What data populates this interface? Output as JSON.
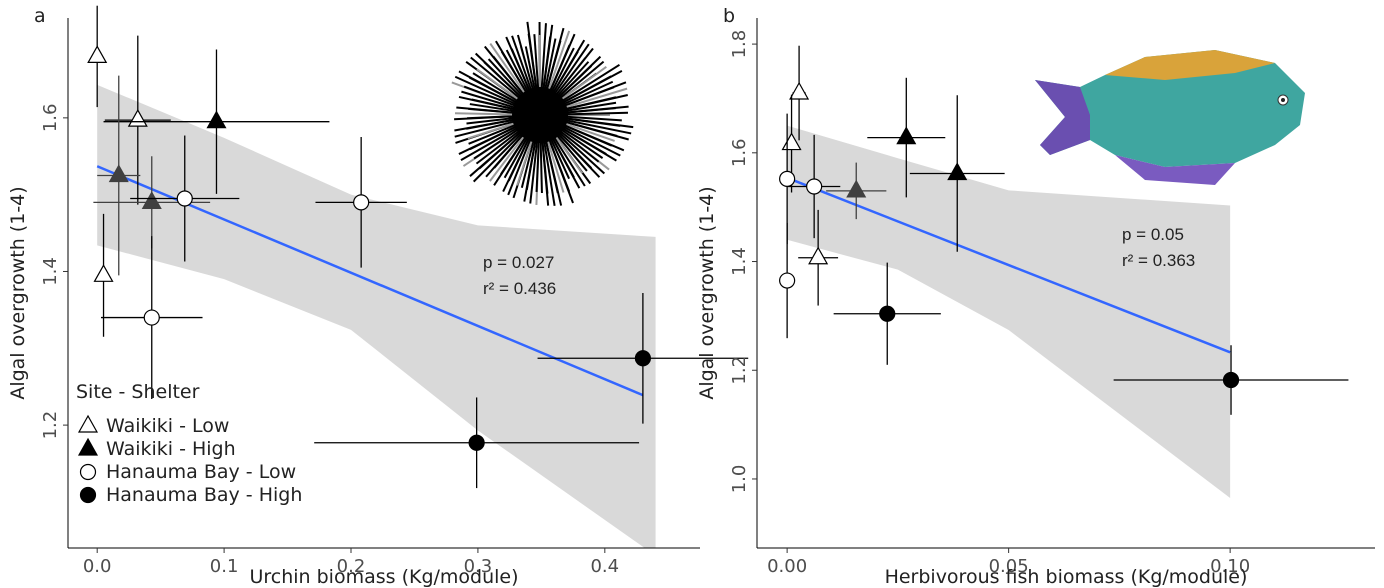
{
  "chart_data": [
    {
      "type": "scatter",
      "panel_label": "a",
      "x_label": "Urchin biomass (Kg/module)",
      "y_label": "Algal overgrowth (1-4)",
      "xlim": [
        -0.023,
        0.475
      ],
      "ylim": [
        1.04,
        1.73
      ],
      "xticks": [
        {
          "value": 0,
          "label": "0.0"
        },
        0.1,
        0.2,
        0.3,
        0.4
      ],
      "yticks": [
        1.2,
        1.4,
        1.6
      ],
      "legend": "lower left",
      "legend_title": "Site - Shelter",
      "series": [
        {
          "name": "Waikiki - Low",
          "marker": "triangle",
          "filled": false,
          "color": "#000000",
          "x": [
            0.0,
            0.005,
            0.032
          ],
          "y": [
            1.68,
            1.395,
            1.597
          ],
          "xerr": [
            0.002,
            0,
            0.026
          ],
          "yerr": [
            0.066,
            0.08,
            0.11
          ]
        },
        {
          "name": "Waikiki - High",
          "marker": "triangle",
          "filled": true,
          "color": "#000000",
          "point_colors": [
            "#000000",
            "#404040",
            "#404040"
          ],
          "x": [
            0.094,
            0.017,
            0.043
          ],
          "y": [
            1.595,
            1.525,
            1.49
          ],
          "xerr": [
            0.089,
            0.017,
            0.046
          ],
          "yerr": [
            0.094,
            0.13,
            0.06
          ]
        },
        {
          "name": "Hanauma Bay - Low",
          "marker": "circle",
          "filled": false,
          "color": "#000000",
          "x": [
            0.069,
            0.043,
            0.208
          ],
          "y": [
            1.495,
            1.34,
            1.49
          ],
          "xerr": [
            0.043,
            0.04,
            0.036
          ],
          "yerr": [
            0.082,
            0.106,
            0.085
          ]
        },
        {
          "name": "Hanauma Bay - High",
          "marker": "circle",
          "filled": true,
          "color": "#000000",
          "x": [
            0.43,
            0.299
          ],
          "y": [
            1.287,
            1.177
          ],
          "xerr": [
            0.083,
            0.128
          ],
          "yerr": [
            0.085,
            0.059
          ]
        }
      ],
      "fit": {
        "color": "#3366ff",
        "x": [
          0.0,
          0.43
        ],
        "y": [
          1.537,
          1.239
        ]
      },
      "band": {
        "color": "#d9d9d9",
        "x": [
          0.0,
          0.1,
          0.2,
          0.3,
          0.44
        ],
        "lower": [
          1.434,
          1.39,
          1.324,
          1.193,
          1.03
        ],
        "upper": [
          1.643,
          1.574,
          1.5,
          1.46,
          1.445
        ]
      },
      "annotations": [
        "p = 0.027",
        "r² = 0.436"
      ]
    },
    {
      "type": "scatter",
      "panel_label": "b",
      "x_label": "Herbivorous fish biomass (Kg/module)",
      "y_label": "Algal overgrowth (1-4)",
      "xlim": [
        -0.0068,
        0.1327
      ],
      "ylim": [
        0.873,
        1.848
      ],
      "xticks": [
        {
          "value": 0,
          "label": "0.00"
        },
        {
          "value": 0.05,
          "label": "0.05"
        },
        {
          "value": 0.1,
          "label": "0.10"
        }
      ],
      "yticks": [
        {
          "value": 1,
          "label": "1.0"
        },
        1.2,
        1.4,
        1.6,
        1.8
      ],
      "legend": false,
      "series": [
        {
          "marker": "triangle",
          "filled": false,
          "color": "#000000",
          "x": [
            0.0027,
            0.001,
            0.007
          ],
          "y": [
            1.71,
            1.617,
            1.407
          ],
          "xerr": [
            0.0015,
            0,
            0.0045
          ],
          "yerr": [
            0.087,
            0.09,
            0.088
          ]
        },
        {
          "marker": "triangle",
          "filled": true,
          "color": "#000000",
          "point_colors": [
            "#000000",
            "#000000",
            "#404040"
          ],
          "x": [
            0.0269,
            0.0384,
            0.0156
          ],
          "y": [
            1.628,
            1.562,
            1.53
          ],
          "xerr": [
            0.0088,
            0.0107,
            0.0068
          ],
          "yerr": [
            0.11,
            0.144,
            0.052
          ]
        },
        {
          "marker": "circle",
          "filled": false,
          "color": "#000000",
          "x": [
            0.0,
            0.0061,
            0.0
          ],
          "y": [
            1.552,
            1.538,
            1.365
          ],
          "xerr": [
            0,
            0.0059,
            0
          ],
          "yerr": [
            0.12,
            0.095,
            0.106
          ]
        },
        {
          "marker": "circle",
          "filled": true,
          "color": "#000000",
          "x": [
            0.0226,
            0.1002
          ],
          "y": [
            1.304,
            1.182
          ],
          "xerr": [
            0.0121,
            0.0265
          ],
          "yerr": [
            0.094,
            0.064
          ]
        }
      ],
      "fit": {
        "color": "#3366ff",
        "x": [
          0.0,
          0.1
        ],
        "y": [
          1.554,
          1.233
        ]
      },
      "band": {
        "color": "#d9d9d9",
        "x": [
          0.0,
          0.025,
          0.05,
          0.1
        ],
        "lower": [
          1.44,
          1.385,
          1.274,
          0.965
        ],
        "upper": [
          1.65,
          1.59,
          1.531,
          1.503
        ]
      },
      "annotations": [
        "p = 0.05",
        "r² = 0.363"
      ]
    }
  ]
}
